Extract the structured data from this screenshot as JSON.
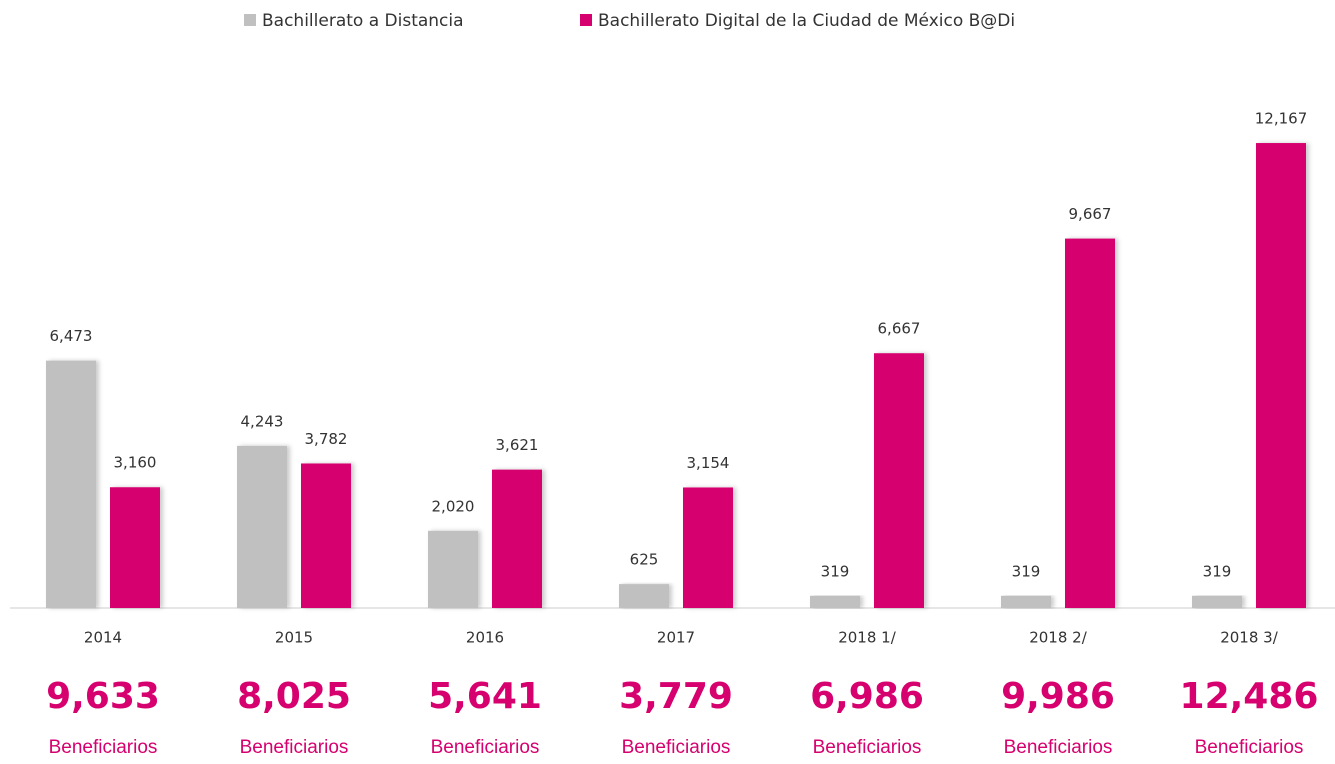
{
  "chart_data": {
    "type": "bar",
    "categories": [
      "2014",
      "2015",
      "2016",
      "2017",
      "2018 1/",
      "2018 2/",
      "2018 3/"
    ],
    "series": [
      {
        "name": "Bachillerato a Distancia",
        "color": "#c0c0c0",
        "values": [
          6473,
          4243,
          2020,
          625,
          319,
          319,
          319
        ],
        "value_labels": [
          "6,473",
          "4,243",
          "2,020",
          "625",
          "319",
          "319",
          "319"
        ]
      },
      {
        "name": "Bachillerato Digital de la Ciudad de México B@Di",
        "color": "#d6006e",
        "values": [
          3160,
          3782,
          3621,
          3154,
          6667,
          9667,
          12167
        ],
        "value_labels": [
          "3,160",
          "3,782",
          "3,621",
          "3,154",
          "6,667",
          "9,667",
          "12,167"
        ]
      }
    ],
    "total_labels": [
      "9,633",
      "8,025",
      "5,641",
      "3,779",
      "6,986",
      "9,986",
      "12,486"
    ],
    "total_caption": "Beneficiarios",
    "ylim": [
      0,
      14000
    ],
    "legend": "top"
  }
}
